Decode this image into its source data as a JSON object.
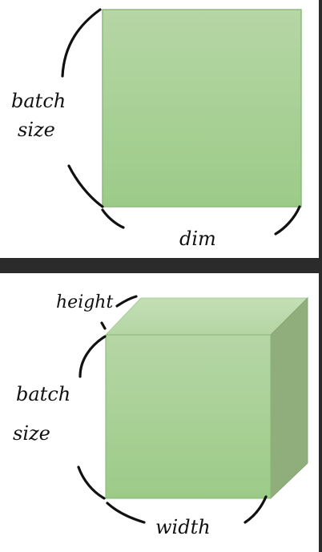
{
  "diagram_2d": {
    "label_batch": "batch",
    "label_size": "size",
    "label_dim": "dim"
  },
  "diagram_3d": {
    "label_height": "height",
    "label_batch": "batch",
    "label_size": "size",
    "label_width": "width"
  },
  "colors": {
    "face_light": "#b6d6a5",
    "face_main": "#9fca8c",
    "face_dark": "#8fae7c",
    "face_edge": "#7fb26e",
    "stroke": "#111111"
  }
}
